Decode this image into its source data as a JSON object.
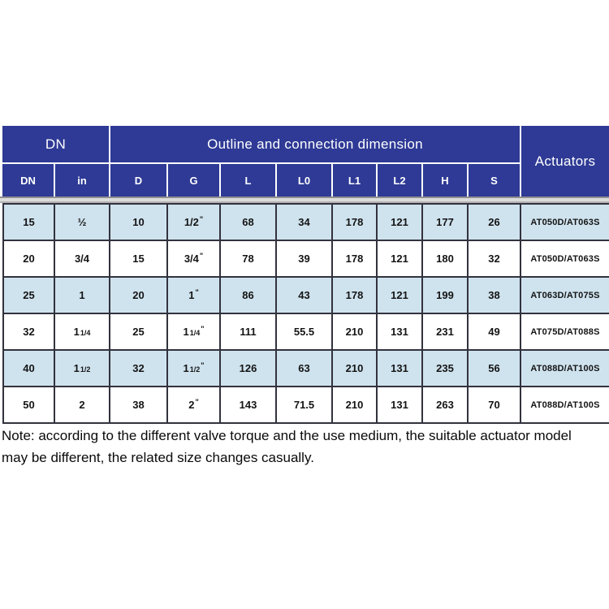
{
  "colors": {
    "header_blue": "#2e3a95",
    "row_alt_blue": "#cfe3ee",
    "body_border": "#32323e",
    "separator_gray": "#dcdcdc"
  },
  "table": {
    "groups": {
      "dn": "DN",
      "outline": "Outline and connection dimension",
      "actuators": "Actuators"
    },
    "columns": [
      "DN",
      "in",
      "D",
      "G",
      "L",
      "L0",
      "L1",
      "L2",
      "H",
      "S"
    ],
    "column_keys": [
      "dn",
      "in",
      "d",
      "g",
      "l",
      "l0",
      "l1",
      "l2",
      "h",
      "s",
      "actuators"
    ],
    "rows": [
      [
        "15",
        "½",
        "10",
        {
          "main": "1/2",
          "quote": true
        },
        "68",
        "34",
        "178",
        "121",
        "177",
        "26",
        "AT050D/AT063S"
      ],
      [
        "20",
        "3/4",
        "15",
        {
          "main": "3/4",
          "quote": true
        },
        "78",
        "39",
        "178",
        "121",
        "180",
        "32",
        "AT050D/AT063S"
      ],
      [
        "25",
        "1",
        "20",
        {
          "main": "1",
          "quote": true
        },
        "86",
        "43",
        "178",
        "121",
        "199",
        "38",
        "AT063D/AT075S"
      ],
      [
        "32",
        {
          "main": "1",
          "small": "1/4"
        },
        "25",
        {
          "main": "1",
          "small": "1/4",
          "quote": true
        },
        "111",
        "55.5",
        "210",
        "131",
        "231",
        "49",
        "AT075D/AT088S"
      ],
      [
        "40",
        {
          "main": "1",
          "small": "1/2"
        },
        "32",
        {
          "main": "1",
          "small": "1/2",
          "quote": true
        },
        "126",
        "63",
        "210",
        "131",
        "235",
        "56",
        "AT088D/AT100S"
      ],
      [
        "50",
        "2",
        "38",
        {
          "main": "2",
          "quote": true
        },
        "143",
        "71.5",
        "210",
        "131",
        "263",
        "70",
        "AT088D/AT100S"
      ]
    ]
  },
  "note": {
    "line1": "Note: according to the different valve torque and the use medium, the suitable actuator model",
    "line2": "may be different, the related size changes casually."
  }
}
